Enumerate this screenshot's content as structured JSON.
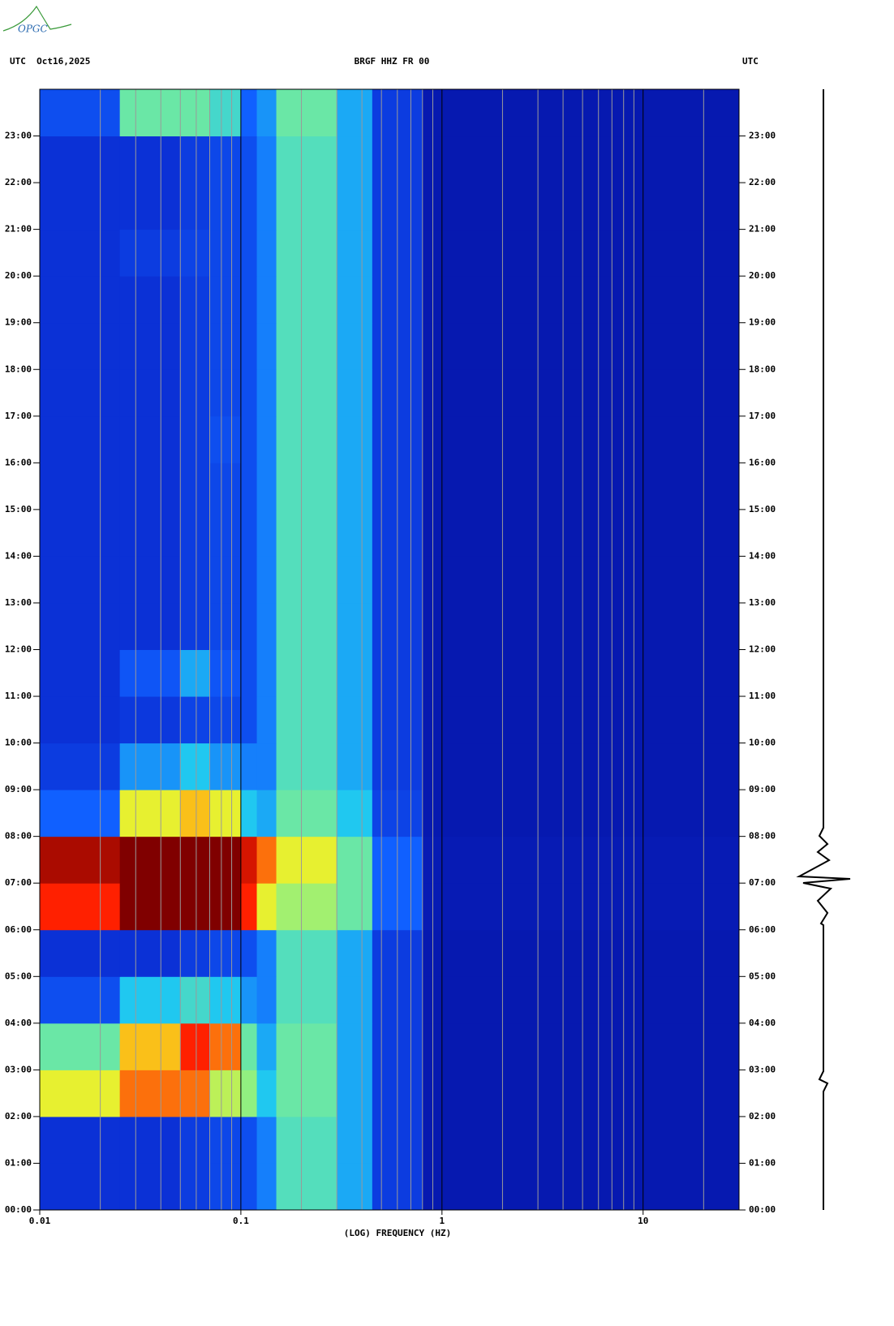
{
  "logo": "OPGC",
  "chart_data": {
    "type": "spectrogram",
    "title": "BRGF HHZ FR 00",
    "left_header": "UTC  Oct16,2025",
    "right_header": "UTC",
    "x_label": "(LOG) FREQUENCY (HZ)",
    "x_scale": "log",
    "xlim": [
      0.01,
      30
    ],
    "xticks": [
      0.01,
      0.1,
      1,
      10
    ],
    "xgrid": [
      0.02,
      0.03,
      0.04,
      0.05,
      0.06,
      0.07,
      0.08,
      0.09,
      0.2,
      0.3,
      0.4,
      0.5,
      0.6,
      0.7,
      0.8,
      0.9,
      2,
      3,
      4,
      5,
      6,
      7,
      8,
      9,
      20
    ],
    "grid": true,
    "ylim": [
      0,
      24
    ],
    "yticks": [
      {
        "value": 0,
        "label": "00:00"
      },
      {
        "value": 1,
        "label": "01:00"
      },
      {
        "value": 2,
        "label": "02:00"
      },
      {
        "value": 3,
        "label": "03:00"
      },
      {
        "value": 4,
        "label": "04:00"
      },
      {
        "value": 5,
        "label": "05:00"
      },
      {
        "value": 6,
        "label": "06:00"
      },
      {
        "value": 7,
        "label": "07:00"
      },
      {
        "value": 8,
        "label": "08:00"
      },
      {
        "value": 9,
        "label": "09:00"
      },
      {
        "value": 10,
        "label": "10:00"
      },
      {
        "value": 11,
        "label": "11:00"
      },
      {
        "value": 12,
        "label": "12:00"
      },
      {
        "value": 13,
        "label": "13:00"
      },
      {
        "value": 14,
        "label": "14:00"
      },
      {
        "value": 15,
        "label": "15:00"
      },
      {
        "value": 16,
        "label": "16:00"
      },
      {
        "value": 17,
        "label": "17:00"
      },
      {
        "value": 18,
        "label": "18:00"
      },
      {
        "value": 19,
        "label": "19:00"
      },
      {
        "value": 20,
        "label": "20:00"
      },
      {
        "value": 21,
        "label": "21:00"
      },
      {
        "value": 22,
        "label": "22:00"
      },
      {
        "value": 23,
        "label": "23:00"
      }
    ],
    "freq_edges": [
      0.01,
      0.025,
      0.05,
      0.07,
      0.1,
      0.12,
      0.15,
      0.3,
      0.45,
      0.8,
      30
    ],
    "time_edges": [
      0,
      1,
      2,
      3,
      4,
      5,
      6,
      7,
      8,
      9,
      10,
      11,
      12,
      13,
      14,
      15,
      16,
      17,
      18,
      19,
      20,
      21,
      22,
      23,
      24
    ],
    "colormap": [
      [
        0,
        "#00007f"
      ],
      [
        0.2,
        "#0a2ad0"
      ],
      [
        0.35,
        "#1060ff"
      ],
      [
        0.45,
        "#20c8f0"
      ],
      [
        0.58,
        "#80f090"
      ],
      [
        0.72,
        "#f8f020"
      ],
      [
        0.85,
        "#ff2000"
      ],
      [
        1,
        "#800000"
      ]
    ],
    "levels": [
      [
        0.22,
        0.22,
        0.25,
        0.28,
        0.3,
        0.38,
        0.52,
        0.42,
        0.25,
        0.12
      ],
      [
        0.22,
        0.22,
        0.25,
        0.28,
        0.3,
        0.38,
        0.52,
        0.42,
        0.25,
        0.12
      ],
      [
        0.7,
        0.8,
        0.8,
        0.65,
        0.6,
        0.45,
        0.55,
        0.42,
        0.25,
        0.12
      ],
      [
        0.55,
        0.75,
        0.85,
        0.8,
        0.55,
        0.42,
        0.55,
        0.42,
        0.25,
        0.12
      ],
      [
        0.3,
        0.45,
        0.5,
        0.45,
        0.4,
        0.38,
        0.52,
        0.42,
        0.25,
        0.12
      ],
      [
        0.22,
        0.22,
        0.25,
        0.28,
        0.3,
        0.38,
        0.52,
        0.42,
        0.25,
        0.12
      ],
      [
        0.85,
        1,
        1,
        1,
        0.85,
        0.7,
        0.62,
        0.55,
        0.35,
        0.13
      ],
      [
        0.95,
        1,
        1,
        1,
        0.9,
        0.8,
        0.7,
        0.55,
        0.35,
        0.13
      ],
      [
        0.35,
        0.7,
        0.75,
        0.7,
        0.45,
        0.42,
        0.55,
        0.45,
        0.27,
        0.12
      ],
      [
        0.25,
        0.4,
        0.45,
        0.4,
        0.38,
        0.38,
        0.52,
        0.42,
        0.25,
        0.12
      ],
      [
        0.22,
        0.24,
        0.27,
        0.28,
        0.3,
        0.38,
        0.52,
        0.42,
        0.25,
        0.12
      ],
      [
        0.22,
        0.32,
        0.42,
        0.32,
        0.3,
        0.38,
        0.52,
        0.42,
        0.25,
        0.12
      ],
      [
        0.22,
        0.22,
        0.25,
        0.28,
        0.3,
        0.38,
        0.52,
        0.42,
        0.25,
        0.12
      ],
      [
        0.22,
        0.22,
        0.25,
        0.28,
        0.3,
        0.38,
        0.52,
        0.42,
        0.25,
        0.12
      ],
      [
        0.22,
        0.22,
        0.25,
        0.28,
        0.3,
        0.38,
        0.52,
        0.42,
        0.25,
        0.12
      ],
      [
        0.22,
        0.22,
        0.25,
        0.28,
        0.3,
        0.38,
        0.52,
        0.42,
        0.25,
        0.12
      ],
      [
        0.22,
        0.22,
        0.25,
        0.3,
        0.3,
        0.38,
        0.52,
        0.42,
        0.25,
        0.12
      ],
      [
        0.22,
        0.22,
        0.25,
        0.28,
        0.3,
        0.38,
        0.52,
        0.42,
        0.25,
        0.12
      ],
      [
        0.22,
        0.22,
        0.25,
        0.28,
        0.3,
        0.38,
        0.52,
        0.42,
        0.25,
        0.12
      ],
      [
        0.22,
        0.22,
        0.25,
        0.28,
        0.3,
        0.38,
        0.52,
        0.42,
        0.25,
        0.12
      ],
      [
        0.22,
        0.25,
        0.27,
        0.28,
        0.3,
        0.38,
        0.52,
        0.42,
        0.25,
        0.12
      ],
      [
        0.22,
        0.22,
        0.25,
        0.28,
        0.3,
        0.38,
        0.52,
        0.42,
        0.25,
        0.12
      ],
      [
        0.22,
        0.22,
        0.25,
        0.28,
        0.3,
        0.38,
        0.52,
        0.42,
        0.25,
        0.12
      ],
      [
        0.3,
        0.55,
        0.55,
        0.5,
        0.35,
        0.4,
        0.55,
        0.42,
        0.25,
        0.12
      ]
    ]
  }
}
